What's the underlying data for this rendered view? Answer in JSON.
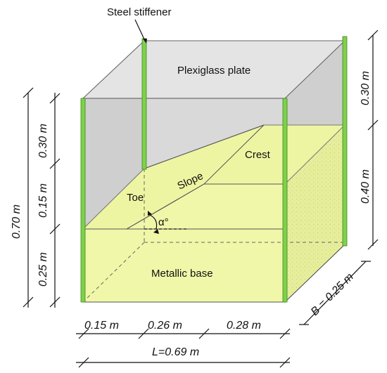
{
  "labels": {
    "steel_stiffener": "Steel stiffener",
    "plexiglass_plate": "Plexiglass plate",
    "crest": "Crest",
    "slope": "Slope",
    "toe": "Toe",
    "angle": "α°",
    "metallic_base": "Metallic base"
  },
  "dimensions": {
    "total_height": "0.70 m",
    "height_top": "0.30 m",
    "height_slope": "0.15 m",
    "height_base": "0.25 m",
    "right_top": "0.30 m",
    "right_mid": "0.40 m",
    "len_toe": "0.15 m",
    "len_slope": "0.26 m",
    "len_crest": "0.28 m",
    "total_length": "L=0.69 m",
    "width": "B = 0.25 m"
  },
  "colors": {
    "soil": "#f0f7a8",
    "soil_side": "#e2ea95",
    "plexiglass": "#d6d6d6",
    "stiffener": "#7fd14a"
  }
}
